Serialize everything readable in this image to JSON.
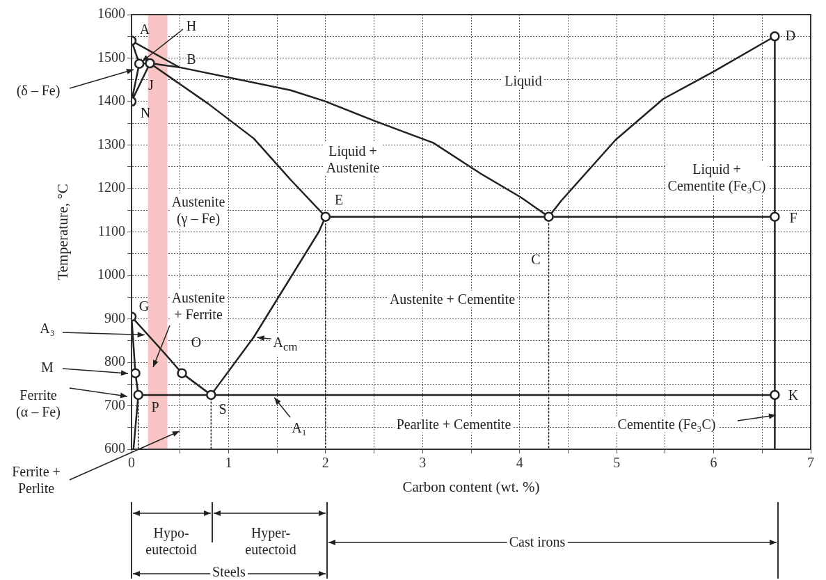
{
  "chart_data": {
    "type": "line",
    "xlabel": "Carbon content (wt. %)",
    "ylabel": "Temperature, °C",
    "xlim": [
      0,
      7
    ],
    "ylim": [
      600,
      1600
    ],
    "xticks": [
      0,
      {
        "value": 0.5,
        "label": null
      },
      1,
      {
        "value": 1.5,
        "label": null
      },
      2,
      {
        "value": 2.5,
        "label": null
      },
      3,
      {
        "value": 3.5,
        "label": null
      },
      4,
      {
        "value": 4.5,
        "label": null
      },
      5,
      {
        "value": 5.5,
        "label": null
      },
      6,
      {
        "value": 6.5,
        "label": null
      },
      7
    ],
    "yticks": [
      600,
      {
        "value": 650,
        "label": null
      },
      700,
      {
        "value": 750,
        "label": null
      },
      800,
      {
        "value": 850,
        "label": null
      },
      900,
      {
        "value": 950,
        "label": null
      },
      1000,
      {
        "value": 1050,
        "label": null
      },
      1100,
      {
        "value": 1150,
        "label": null
      },
      1200,
      {
        "value": 1250,
        "label": null
      },
      1300,
      {
        "value": 1350,
        "label": null
      },
      1400,
      {
        "value": 1450,
        "label": null
      },
      1500,
      {
        "value": 1550,
        "label": null
      },
      1600
    ],
    "grid": true,
    "legend": false,
    "marker": "none",
    "line_style": "solid",
    "bands": [
      {
        "axis": "x",
        "from": 0.17,
        "to": 0.37,
        "label": null,
        "color": "#f9c4c4"
      }
    ],
    "series": [
      {
        "type": "line",
        "color": "#222222",
        "x": [
          0,
          0.49,
          1.64,
          1.99,
          2.51,
          3.11,
          3.6,
          4.01,
          4.3,
          4.43,
          4.99,
          5.48,
          6.0,
          6.63,
          6.63
        ],
        "values": [
          1540,
          1479,
          1426,
          1401,
          1355,
          1305,
          1234,
          1180,
          1135,
          1172,
          1312,
          1406,
          1469,
          1550,
          600
        ]
      },
      {
        "type": "line",
        "color": "#222222",
        "x": [
          0,
          0.08,
          0
        ],
        "values": [
          1540,
          1487,
          1400
        ]
      },
      {
        "type": "line",
        "color": "#222222",
        "x": [
          0,
          0.19,
          0.79,
          1.26,
          1.64,
          2.0,
          6.63
        ],
        "values": [
          1400,
          1488,
          1395,
          1315,
          1220,
          1135,
          1135
        ]
      },
      {
        "type": "line",
        "color": "#222222",
        "x": [
          0.08,
          0.19,
          0.49
        ],
        "values": [
          1487,
          1488,
          1479
        ]
      },
      {
        "type": "line",
        "color": "#222222",
        "x": [
          0,
          0.32,
          0.52,
          0.82,
          1.26,
          1.93,
          2.0
        ],
        "values": [
          905,
          826,
          775,
          725,
          858,
          1100,
          1135
        ]
      },
      {
        "type": "line",
        "color": "#222222",
        "x": [
          0,
          0.04,
          0.07,
          0.02
        ],
        "values": [
          905,
          775,
          725,
          600
        ]
      },
      {
        "type": "line",
        "color": "#222222",
        "x": [
          0.07,
          6.63
        ],
        "values": [
          725,
          725
        ]
      },
      {
        "type": "line",
        "color": "#222222",
        "line_style": "dotted",
        "x": [
          0.07,
          0.07
        ],
        "values": [
          725,
          600
        ]
      },
      {
        "type": "line",
        "color": "#222222",
        "line_style": "dotted",
        "x": [
          0.82,
          0.82
        ],
        "values": [
          725,
          600
        ]
      },
      {
        "type": "line",
        "color": "#222222",
        "line_style": "dotted",
        "x": [
          2.0,
          2.0
        ],
        "values": [
          1135,
          600
        ]
      },
      {
        "type": "line",
        "color": "#222222",
        "line_style": "dotted",
        "x": [
          4.3,
          4.3
        ],
        "values": [
          1135,
          600
        ]
      },
      {
        "type": "scatter",
        "color": "#222222",
        "marker": "circle",
        "x": [
          0,
          0.08,
          0.19,
          0,
          0,
          0.04,
          0.52,
          0.07,
          0.82,
          2.0,
          4.3,
          6.63,
          6.63,
          6.63
        ],
        "values": [
          1540,
          1487,
          1488,
          1400,
          905,
          775,
          775,
          725,
          725,
          1135,
          1135,
          1550,
          1135,
          725
        ]
      }
    ],
    "annotations": [
      "A",
      {
        "text": "H",
        "x": 0.08,
        "y": 1487
      },
      "B",
      "J",
      "N",
      "D",
      "E",
      "F",
      "C",
      "G",
      "O",
      "P",
      "S",
      "K",
      "Liquid",
      "Liquid +\nAustenite",
      "Liquid +\nCementite (Fe₃C)",
      "Austenite\n(γ – Fe)",
      "Austenite\n+ Ferrite",
      "Austenite + Cementite",
      "Pearlite + Cementite",
      "Cementite (Fe₃C)",
      {
        "text": "A$_{cm}$",
        "x": 1.26,
        "y": 858
      },
      {
        "text": "A₁",
        "x": 1.45,
        "y": 725
      },
      "(δ – Fe)",
      {
        "text": "A₃",
        "x": 0.17,
        "y": 863
      },
      "M",
      "Ferrite\n(α – Fe)",
      "Ferrite +\nPerlite",
      "Hypo-\neutectoid",
      "Hyper-\neutectoid",
      "Steels",
      "Cast irons"
    ]
  }
}
